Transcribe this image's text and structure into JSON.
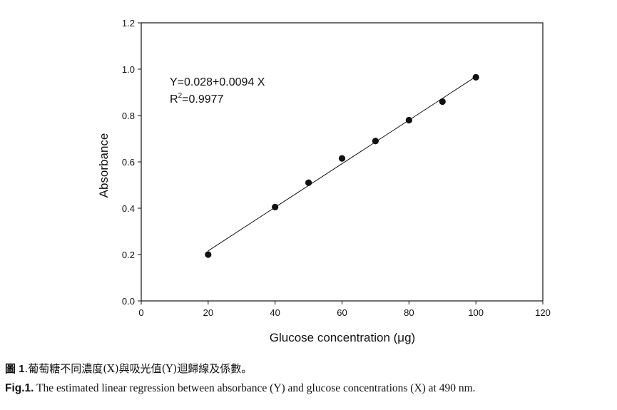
{
  "chart_data": {
    "type": "scatter",
    "xlabel": "Glucose concentration (μg)",
    "ylabel": "Absorbance",
    "xlim": [
      0,
      120
    ],
    "ylim": [
      0,
      1.2
    ],
    "xticks": [
      "0",
      "20",
      "40",
      "60",
      "80",
      "100",
      "120"
    ],
    "yticks": [
      "0.0",
      "0.2",
      "0.4",
      "0.6",
      "0.8",
      "1.0",
      "1.2"
    ],
    "grid": false,
    "x": [
      20,
      40,
      50,
      60,
      70,
      80,
      90,
      100
    ],
    "y": [
      0.2,
      0.405,
      0.51,
      0.615,
      0.69,
      0.78,
      0.86,
      0.965
    ],
    "fit_line": {
      "intercept": 0.028,
      "slope": 0.0094,
      "x_range": [
        20,
        100
      ]
    },
    "annotation": {
      "equation": "Y=0.028+0.0094 X",
      "r2_prefix": "R",
      "r2_sup": "2",
      "r2_value": "=0.9977"
    }
  },
  "caption": {
    "zh_label": "圖 1",
    "zh_text": ".葡萄糖不同濃度(X)與吸光值(Y)迴歸線及係數。",
    "en_label": "Fig.1.",
    "en_text": " The estimated linear regression between absorbance (Y) and glucose concentrations (X) at 490 nm."
  }
}
